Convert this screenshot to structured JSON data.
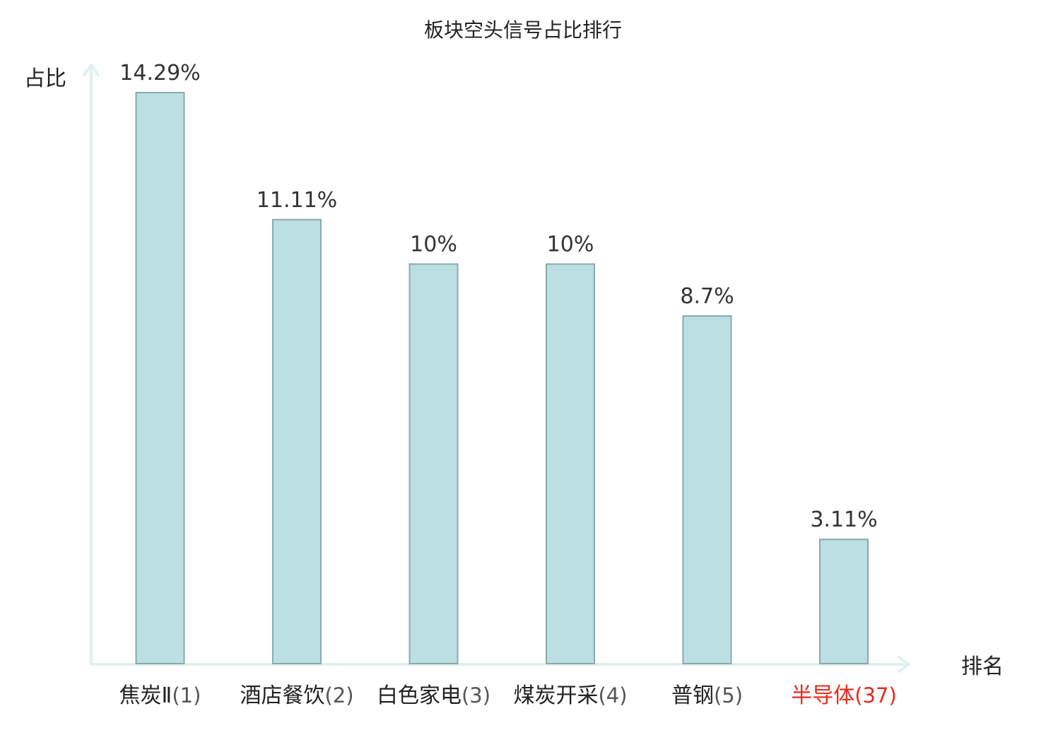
{
  "chart_data": {
    "type": "bar",
    "title": "板块空头信号占比排行",
    "ylabel": "占比",
    "xlabel": "排名",
    "categories": [
      "焦炭Ⅱ(1)",
      "酒店餐饮(2)",
      "白色家电(3)",
      "煤炭开采(4)",
      "普钢(5)",
      "半导体(37)"
    ],
    "category_names": [
      "焦炭Ⅱ",
      "酒店餐饮",
      "白色家电",
      "煤炭开采",
      "普钢",
      "半导体"
    ],
    "category_ranks": [
      "(1)",
      "(2)",
      "(3)",
      "(4)",
      "(5)",
      "(37)"
    ],
    "values": [
      14.29,
      11.11,
      10,
      10,
      8.7,
      3.11
    ],
    "value_labels": [
      "14.29%",
      "11.11%",
      "10%",
      "10%",
      "8.7%",
      "3.11%"
    ],
    "highlight_index": 5,
    "ylim": [
      0,
      14.29
    ],
    "grid": false,
    "legend": "none"
  },
  "colors": {
    "bar_fill": "#bce0e2",
    "bar_stroke": "#8aa9ab",
    "axis": "#dff1ef",
    "text": "#222222",
    "value_text": "#333333",
    "rank_text": "#555555",
    "highlight": "#e8281c"
  }
}
